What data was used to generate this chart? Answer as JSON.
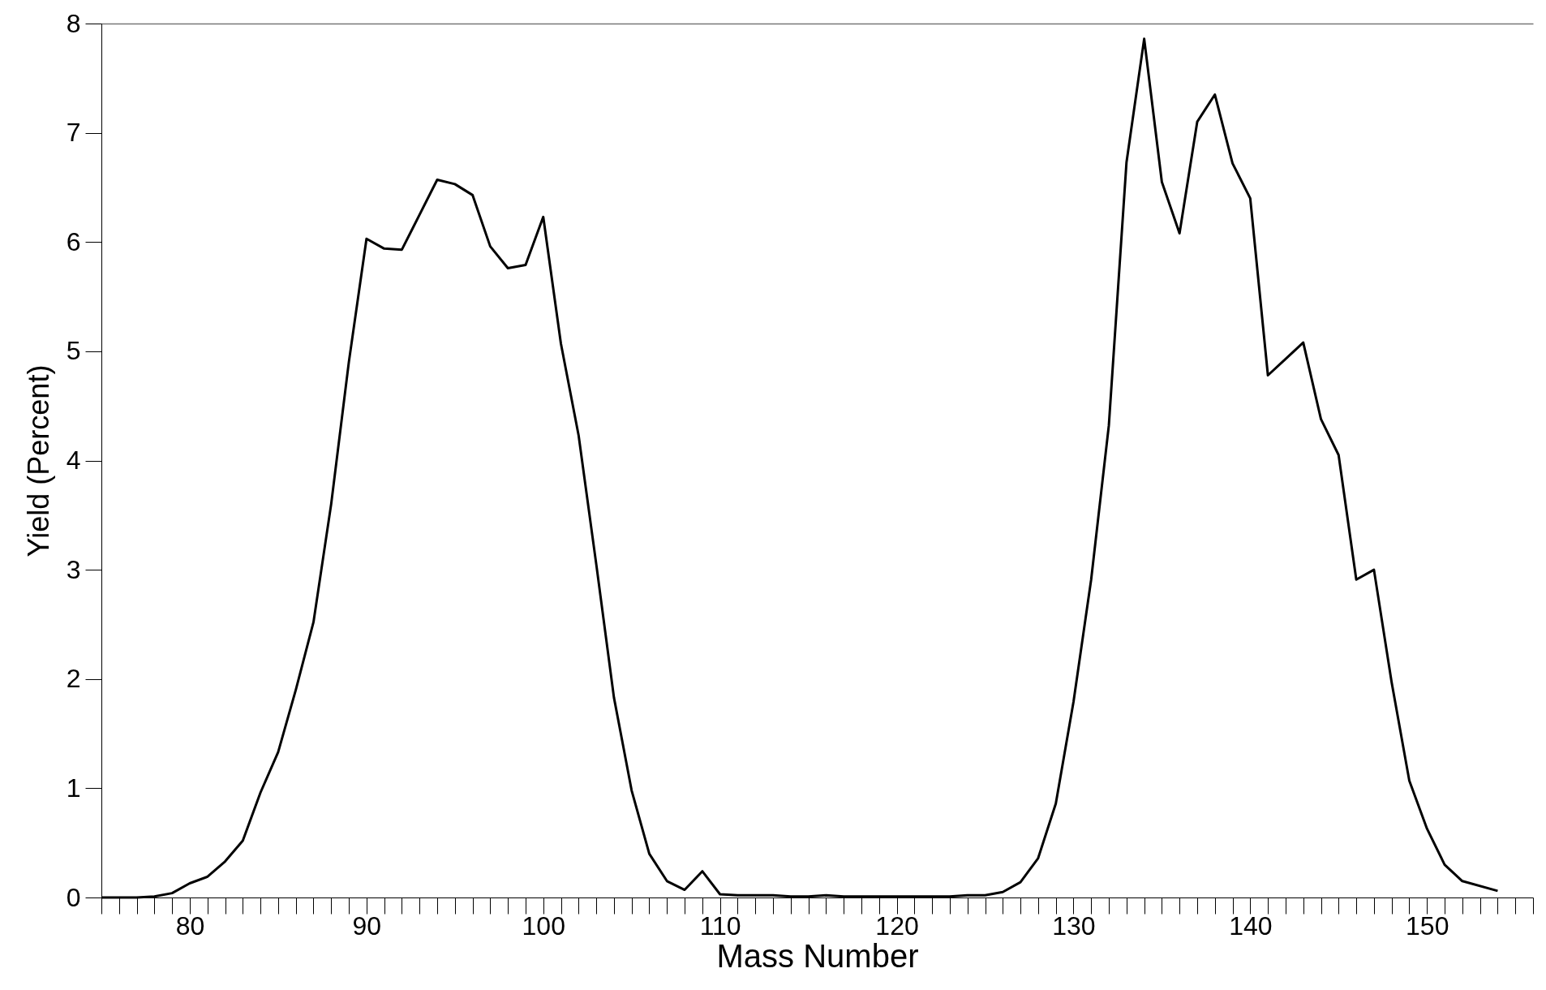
{
  "chart_data": {
    "type": "line",
    "xlabel": "Mass Number",
    "ylabel": "Yield (Percent)",
    "x": [
      75,
      76,
      77,
      78,
      79,
      80,
      81,
      82,
      83,
      84,
      85,
      86,
      87,
      88,
      89,
      90,
      91,
      92,
      93,
      94,
      95,
      96,
      97,
      98,
      99,
      100,
      101,
      102,
      103,
      104,
      105,
      106,
      107,
      108,
      109,
      110,
      111,
      112,
      113,
      114,
      115,
      116,
      117,
      118,
      119,
      120,
      121,
      122,
      123,
      124,
      125,
      126,
      127,
      128,
      129,
      130,
      131,
      132,
      133,
      134,
      135,
      136,
      137,
      138,
      139,
      140,
      141,
      142,
      143,
      144,
      145,
      146,
      147,
      148,
      149,
      150,
      151,
      152,
      154
    ],
    "series": [
      {
        "color": "#000000",
        "values": [
          0,
          0,
          0,
          0.01,
          0.04,
          0.13,
          0.19,
          0.33,
          0.52,
          0.96,
          1.33,
          1.9,
          2.52,
          3.6,
          4.9,
          6.03,
          5.94,
          5.93,
          6.25,
          6.57,
          6.53,
          6.43,
          5.96,
          5.76,
          5.79,
          6.23,
          5.07,
          4.23,
          3.05,
          1.83,
          0.98,
          0.4,
          0.15,
          0.07,
          0.24,
          0.03,
          0.02,
          0.02,
          0.02,
          0.01,
          0.01,
          0.02,
          0.01,
          0.01,
          0.01,
          0.01,
          0.01,
          0.01,
          0.01,
          0.02,
          0.02,
          0.05,
          0.14,
          0.36,
          0.86,
          1.79,
          2.91,
          4.32,
          6.73,
          7.86,
          6.55,
          6.08,
          7.1,
          7.35,
          6.72,
          6.4,
          4.78,
          4.93,
          5.08,
          4.38,
          4.05,
          2.91,
          3.0,
          1.97,
          1.07,
          0.63,
          0.3,
          0.15,
          0.06
        ]
      }
    ],
    "xlim": [
      75,
      156
    ],
    "xticks": [
      80,
      90,
      100,
      110,
      120,
      130,
      140,
      150
    ],
    "ylim": [
      0,
      8
    ],
    "yticks": [
      0,
      1,
      2,
      3,
      4,
      5,
      6,
      7,
      8
    ],
    "grid": false,
    "legend": false,
    "marker": "none",
    "line_style": "solid"
  }
}
